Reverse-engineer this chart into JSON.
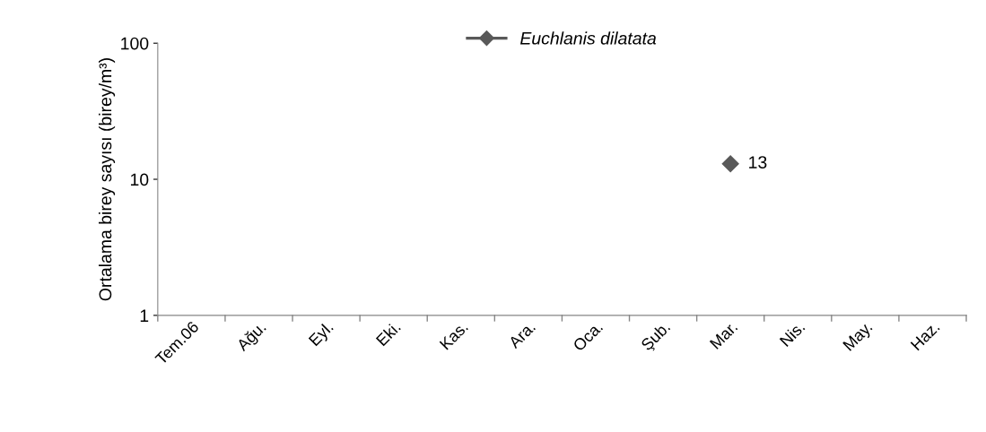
{
  "chart_data": {
    "type": "line",
    "ylabel": "Ortalama birey sayısı (birey/m³)",
    "categories": [
      "Tem.06",
      "Ağu.",
      "Eyl.",
      "Eki.",
      "Kas.",
      "Ara.",
      "Oca.",
      "Şub.",
      "Mar.",
      "Nis.",
      "May.",
      "Haz."
    ],
    "series": [
      {
        "name": "Euchlanis dilatata",
        "color": "#595959",
        "values": [
          null,
          null,
          null,
          null,
          null,
          null,
          null,
          null,
          13,
          null,
          null,
          null
        ]
      }
    ],
    "log": "y",
    "ylim": [
      1,
      100
    ],
    "yticks": [
      1,
      10,
      100
    ],
    "grid": false,
    "legend": "top",
    "marker": "diamond",
    "line_style": "solid",
    "data_labels": true
  }
}
